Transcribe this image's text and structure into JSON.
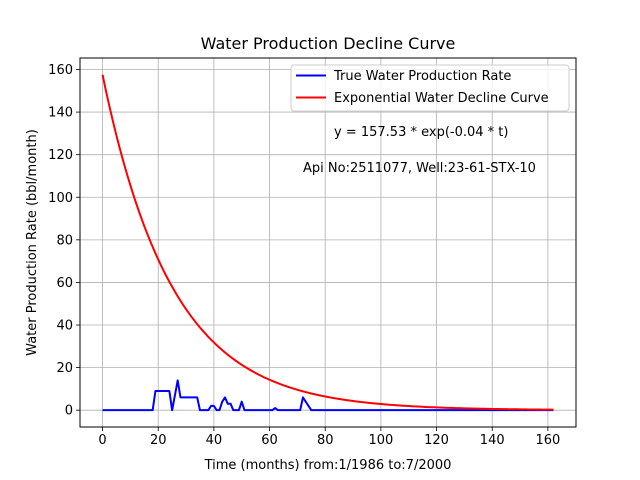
{
  "chart_data": {
    "type": "line",
    "title": "Water Production Decline Curve",
    "xlabel": "Time (months) from:1/1986 to:7/2000",
    "ylabel": "Water Production Rate (bbl/month)",
    "xlim": [
      -8.1,
      170.1
    ],
    "ylim": [
      -7.9,
      165.4
    ],
    "xticks": [
      0,
      20,
      40,
      60,
      80,
      100,
      120,
      140,
      160
    ],
    "yticks": [
      0,
      20,
      40,
      60,
      80,
      100,
      120,
      140,
      160
    ],
    "grid": true,
    "legend_position": "upper right",
    "series": [
      {
        "name": "True Water Production Rate",
        "color": "#0000ff",
        "x": [
          0,
          18,
          19,
          24,
          25,
          26,
          27,
          28,
          34,
          35,
          38,
          39,
          40,
          41,
          42,
          43,
          44,
          45,
          46,
          47,
          48,
          49,
          50,
          51,
          61,
          62,
          63,
          71,
          72,
          73,
          74,
          75,
          162
        ],
        "y": [
          0,
          0,
          9,
          9,
          0,
          7,
          14,
          6,
          6,
          0,
          0,
          2,
          2,
          0,
          0,
          4,
          6,
          3,
          3,
          0,
          0,
          0,
          4,
          0,
          0,
          1,
          0,
          0,
          6,
          4,
          2,
          0,
          0
        ]
      },
      {
        "name": "Exponential Water Decline Curve",
        "color": "#ff0000",
        "model": {
          "a": 157.53,
          "b": 0.04,
          "t_start": 0,
          "t_end": 162
        }
      }
    ],
    "annotations": [
      "y = 157.53 * exp(-0.04 * t)",
      "Api No:2511077, Well:23-61-STX-10"
    ]
  }
}
